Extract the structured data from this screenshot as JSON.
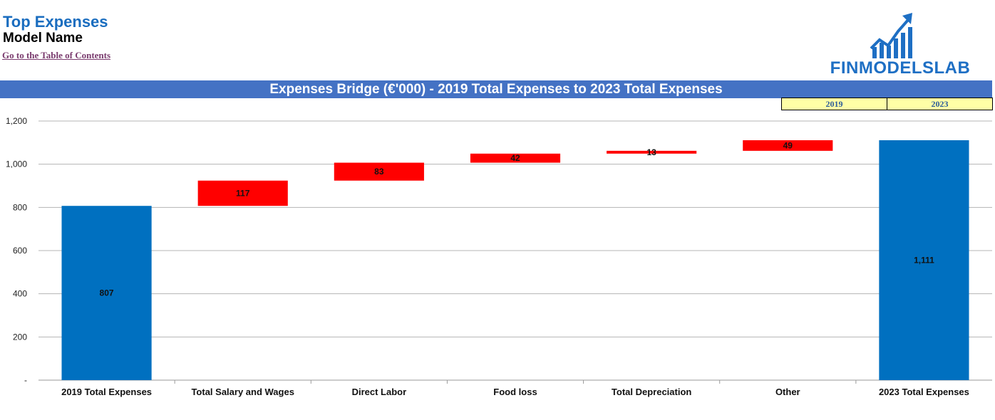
{
  "header": {
    "title": "Top Expenses",
    "model_name": "Model Name",
    "toc_link": "Go to the Table of Contents"
  },
  "logo": {
    "text": "FINMODELSLAB"
  },
  "year_boxes": [
    "2019",
    "2023"
  ],
  "colors": {
    "total": "#0070c0",
    "increase": "#ff0000",
    "banner": "#4472c4",
    "title": "#1a6dbf"
  },
  "chart_data": {
    "type": "bar",
    "subtype": "waterfall",
    "title": "Expenses Bridge (€'000) - 2019 Total Expenses to 2023 Total Expenses",
    "categories": [
      "2019 Total Expenses",
      "Total Salary and Wages",
      "Direct Labor",
      "Food loss",
      "Total Depreciation",
      "Other",
      "2023 Total Expenses"
    ],
    "values": [
      807,
      117,
      83,
      42,
      13,
      49,
      1111
    ],
    "data_labels": [
      "807",
      "117",
      "83",
      "42",
      "13",
      "49",
      "1,111"
    ],
    "kinds": [
      "total",
      "increase",
      "increase",
      "increase",
      "increase",
      "increase",
      "total"
    ],
    "ylim": [
      0,
      1200
    ],
    "yticks": [
      0,
      200,
      400,
      600,
      800,
      1000,
      1200
    ],
    "ytick_labels": [
      "-",
      "200",
      "400",
      "600",
      "800",
      "1,000",
      "1,200"
    ],
    "grid": true
  }
}
